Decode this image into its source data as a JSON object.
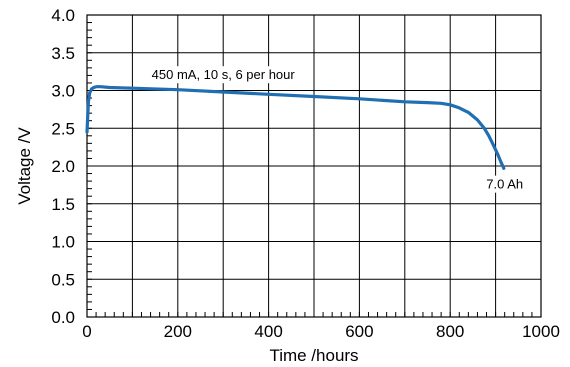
{
  "chart_data": {
    "type": "line",
    "title": "",
    "xlabel": "Time /hours",
    "ylabel": "Voltage /V",
    "xlim": [
      0,
      1000
    ],
    "ylim": [
      0.0,
      4.0
    ],
    "x_ticks": [
      "0",
      "200",
      "400",
      "600",
      "800",
      "1000"
    ],
    "y_ticks": [
      "0.0",
      "0.5",
      "1.0",
      "1.5",
      "2.0",
      "2.5",
      "3.0",
      "3.5",
      "4.0"
    ],
    "grid": true,
    "series": [
      {
        "color": "#1f6fb2",
        "x": [
          0,
          3,
          6,
          10,
          15,
          20,
          30,
          50,
          100,
          200,
          300,
          400,
          500,
          600,
          700,
          750,
          780,
          800,
          820,
          840,
          860,
          875,
          885,
          895,
          905,
          912,
          918
        ],
        "y": [
          2.45,
          2.85,
          2.97,
          3.02,
          3.04,
          3.05,
          3.05,
          3.04,
          3.03,
          3.01,
          2.98,
          2.95,
          2.92,
          2.89,
          2.85,
          2.84,
          2.83,
          2.81,
          2.77,
          2.71,
          2.61,
          2.5,
          2.4,
          2.28,
          2.15,
          2.05,
          1.97
        ]
      }
    ],
    "annotations": [
      {
        "text": "450 mA,  10 s, 6 per hour",
        "x": 300,
        "y": 3.15
      },
      {
        "text": "7.0 Ah",
        "x": 920,
        "y": 1.7
      }
    ]
  }
}
